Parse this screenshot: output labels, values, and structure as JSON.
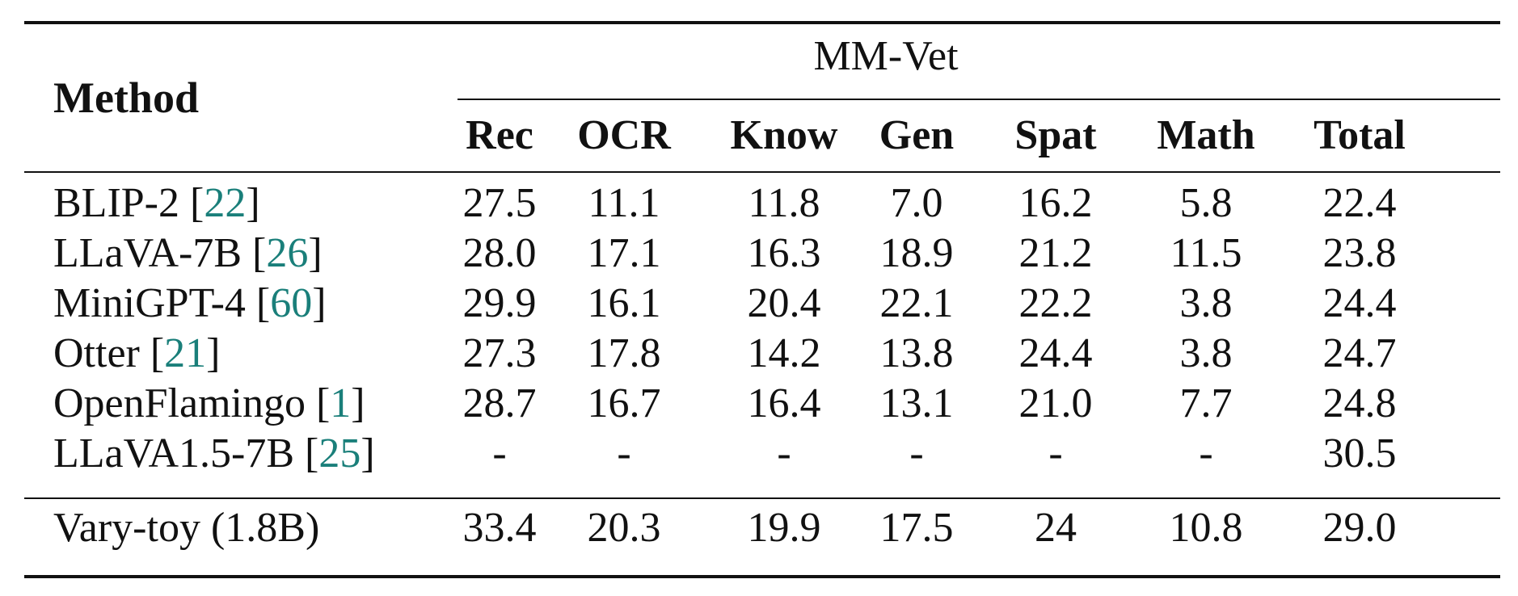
{
  "table": {
    "method_header": "Method",
    "group_header": "MM-Vet",
    "columns": [
      "Rec",
      "OCR",
      "Know",
      "Gen",
      "Spat",
      "Math",
      "Total"
    ],
    "rows": [
      {
        "method": "BLIP-2 [",
        "cite": "22",
        "close": "]",
        "values": [
          "27.5",
          "11.1",
          "11.8",
          "7.0",
          "16.2",
          "5.8",
          "22.4"
        ]
      },
      {
        "method": "LLaVA-7B [",
        "cite": "26",
        "close": "]",
        "values": [
          "28.0",
          "17.1",
          "16.3",
          "18.9",
          "21.2",
          "11.5",
          "23.8"
        ]
      },
      {
        "method": "MiniGPT-4 [",
        "cite": "60",
        "close": "]",
        "values": [
          "29.9",
          "16.1",
          "20.4",
          "22.1",
          "22.2",
          "3.8",
          "24.4"
        ]
      },
      {
        "method": "Otter [",
        "cite": "21",
        "close": "]",
        "values": [
          "27.3",
          "17.8",
          "14.2",
          "13.8",
          "24.4",
          "3.8",
          "24.7"
        ]
      },
      {
        "method": "OpenFlamingo [",
        "cite": "1",
        "close": "]",
        "values": [
          "28.7",
          "16.7",
          "16.4",
          "13.1",
          "21.0",
          "7.7",
          "24.8"
        ]
      },
      {
        "method": "LLaVA1.5-7B [",
        "cite": "25",
        "close": "]",
        "values": [
          "-",
          "-",
          "-",
          "-",
          "-",
          "-",
          "30.5"
        ]
      }
    ],
    "final_row": {
      "method": "Vary-toy (1.8B)",
      "values": [
        "33.4",
        "20.3",
        "19.9",
        "17.5",
        "24",
        "10.8",
        "29.0"
      ]
    }
  },
  "colors": {
    "text": "#111111",
    "citation": "#1a7f7a"
  }
}
